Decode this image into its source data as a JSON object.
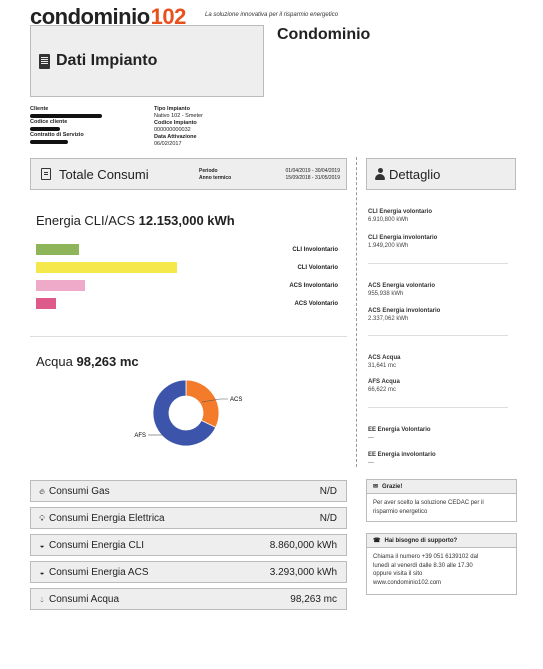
{
  "header": {
    "logo_text": "condominio",
    "logo_number": "102",
    "tagline": "La soluzione innovativa per il risparmio energetico",
    "page_title": "Dati Impianto",
    "condominio_title": "Condominio"
  },
  "client_info": {
    "cliente_label": "Cliente",
    "codice_cliente_label": "Codice cliente",
    "contratto_label": "Contratto di Servizio"
  },
  "impianto_info": {
    "tipo_label": "Tipo Impianto",
    "tipo_value": "Nativo 102 - Smeter",
    "codice_label": "Codice Impianto",
    "codice_value": "000000000032",
    "data_label": "Data Attivazione",
    "data_value": "06/02/2017"
  },
  "totale": {
    "title": "Totale Consumi",
    "periodo_label": "Periodo",
    "periodo_value": "01/04/2019 - 30/04/2019",
    "anno_label": "Anno termico",
    "anno_value": "15/09/2018 - 31/05/2019"
  },
  "dettaglio": {
    "title": "Dettaglio"
  },
  "energia": {
    "label": "Energia CLI/ACS",
    "value": "12.153,000 kWh",
    "bars": [
      {
        "label": "CLI Involontario",
        "color": "#8fb55a",
        "fraction": 0.28
      },
      {
        "label": "CLI Volontario",
        "color": "#f5e84a",
        "fraction": 0.92
      },
      {
        "label": "ACS Involontario",
        "color": "#eeaac8",
        "fraction": 0.32
      },
      {
        "label": "ACS Volontario",
        "color": "#de5a8a",
        "fraction": 0.13
      }
    ]
  },
  "acqua": {
    "label": "Acqua",
    "value": "98,263 mc",
    "donut": [
      {
        "label": "ACS",
        "value": 31.641,
        "color": "#f47b2a"
      },
      {
        "label": "AFS",
        "value": 66.622,
        "color": "#3c55aa"
      }
    ]
  },
  "detail_items": {
    "cli_vol_t": "CLI Energia volontario",
    "cli_vol_v": "6.910,800 kWh",
    "cli_inv_t": "CLI Energia involontario",
    "cli_inv_v": "1.949,200 kWh",
    "acs_vol_t": "ACS Energia volontario",
    "acs_vol_v": "955,938 kWh",
    "acs_inv_t": "ACS Energia involontario",
    "acs_inv_v": "2.337,062 kWh",
    "acs_acqua_t": "ACS Acqua",
    "acs_acqua_v": "31,641 mc",
    "afs_acqua_t": "AFS Acqua",
    "afs_acqua_v": "66,622 mc",
    "ee_vol_t": "EE Energia Volontario",
    "ee_vol_v": "---",
    "ee_inv_t": "EE Energia involontario",
    "ee_inv_v": "---"
  },
  "summary": [
    {
      "label": "Consumi Gas",
      "value": "N/D",
      "icon": "flame-icon"
    },
    {
      "label": "Consumi Energia Elettrica",
      "value": "N/D",
      "icon": "lightbulb-icon"
    },
    {
      "label": "Consumi Energia CLI",
      "value": "8.860,000 kWh",
      "icon": "gauge-icon"
    },
    {
      "label": "Consumi Energia ACS",
      "value": "3.293,000 kWh",
      "icon": "gauge-icon"
    },
    {
      "label": "Consumi Acqua",
      "value": "98,263 mc",
      "icon": "drop-icon"
    }
  ],
  "grazie": {
    "title": "Grazie!",
    "body": "Per aver scelto la soluzione CEDAC per il risparmio energetico"
  },
  "supporto": {
    "title": "Hai bisogno di supporto?",
    "line1": "Chiama il numero +39 051 6139102 dal",
    "line2": "lunedì al venerdì dalle 8.30 alle 17.30",
    "line3": "oppure visita il sito",
    "line4": "www.condominio102.com"
  }
}
